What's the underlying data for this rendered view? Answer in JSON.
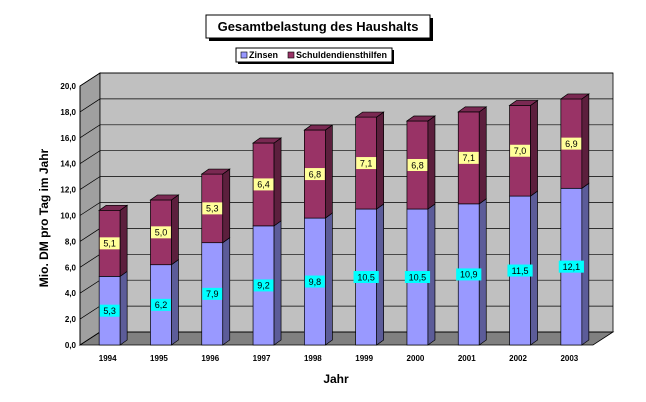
{
  "chart_data": {
    "type": "bar",
    "stacked": true,
    "title": "Gesamtbelastung des Haushalts",
    "xlabel": "Jahr",
    "ylabel": "Mio. DM  pro Tag im Jahr",
    "categories": [
      "1994",
      "1995",
      "1996",
      "1997",
      "1998",
      "1999",
      "2000",
      "2001",
      "2002",
      "2003"
    ],
    "series": [
      {
        "name": "Zinsen",
        "color": "#9999FF",
        "values": [
          5.3,
          6.2,
          7.9,
          9.2,
          9.8,
          10.5,
          10.5,
          10.9,
          11.5,
          12.1
        ],
        "labels": [
          "5,3",
          "6,2",
          "7,9",
          "9,2",
          "9,8",
          "10,5",
          "10,5",
          "10,9",
          "11,5",
          "12,1"
        ],
        "label_color": "#00FFFF"
      },
      {
        "name": "Schuldendiensthilfen",
        "color": "#993366",
        "values": [
          5.1,
          5.0,
          5.3,
          6.4,
          6.8,
          7.1,
          6.8,
          7.1,
          7.0,
          6.9
        ],
        "labels": [
          "5,1",
          "5,0",
          "5,3",
          "6,4",
          "6,8",
          "7,1",
          "6,8",
          "7,1",
          "7,0",
          "6,9"
        ],
        "label_color": "#FFFF99"
      }
    ],
    "ylim": [
      0,
      20
    ],
    "yticks": [
      "0,0",
      "2,0",
      "4,0",
      "6,0",
      "8,0",
      "10,0",
      "12,0",
      "14,0",
      "16,0",
      "18,0",
      "20,0"
    ],
    "grid": true,
    "legend_position": "top"
  }
}
